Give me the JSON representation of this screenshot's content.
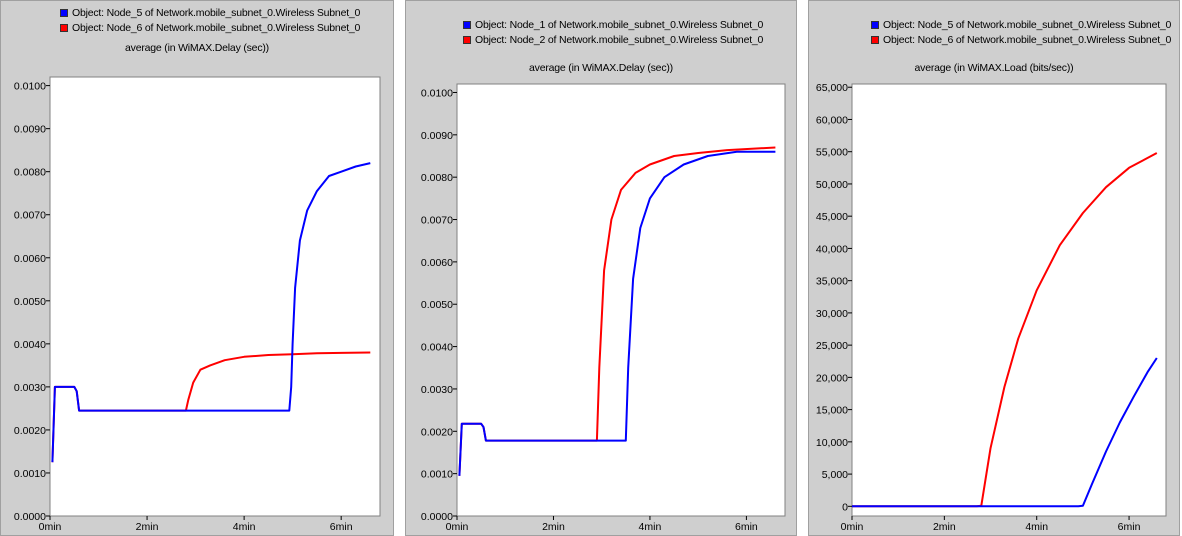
{
  "chart_data": [
    {
      "type": "line",
      "title": "average (in WiMAX.Delay (sec))",
      "xlabel": "",
      "ylabel": "",
      "xlim": [
        0,
        6.8
      ],
      "ylim": [
        0,
        0.0102
      ],
      "x_ticks": [
        {
          "value": 0,
          "label": "0min"
        },
        {
          "value": 2,
          "label": "2min"
        },
        {
          "value": 4,
          "label": "4min"
        },
        {
          "value": 6,
          "label": "6min"
        }
      ],
      "y_ticks": [
        {
          "value": 0,
          "label": "0.0000"
        },
        {
          "value": 0.001,
          "label": "0.0010"
        },
        {
          "value": 0.002,
          "label": "0.0020"
        },
        {
          "value": 0.003,
          "label": "0.0030"
        },
        {
          "value": 0.004,
          "label": "0.0040"
        },
        {
          "value": 0.005,
          "label": "0.0050"
        },
        {
          "value": 0.006,
          "label": "0.0060"
        },
        {
          "value": 0.007,
          "label": "0.0070"
        },
        {
          "value": 0.008,
          "label": "0.0080"
        },
        {
          "value": 0.009,
          "label": "0.0090"
        },
        {
          "value": 0.01,
          "label": "0.0100"
        }
      ],
      "grid": false,
      "legend": "top",
      "series": [
        {
          "name": "Object: Node_5 of Network.mobile_subnet_0.Wireless Subnet_0",
          "color": "#0000ff",
          "x": [
            0.05,
            0.1,
            0.2,
            0.5,
            0.55,
            0.6,
            1.0,
            2.0,
            2.8,
            3.5,
            4.0,
            4.5,
            4.93,
            4.97,
            5.0,
            5.05,
            5.15,
            5.3,
            5.5,
            5.75,
            6.0,
            6.3,
            6.6
          ],
          "y": [
            0.00125,
            0.003,
            0.003,
            0.003,
            0.0029,
            0.00245,
            0.00245,
            0.00245,
            0.00245,
            0.00245,
            0.00245,
            0.00245,
            0.00245,
            0.003,
            0.004,
            0.0053,
            0.0064,
            0.0071,
            0.00755,
            0.0079,
            0.008,
            0.00812,
            0.0082
          ]
        },
        {
          "name": "Object: Node_6 of Network.mobile_subnet_0.Wireless Subnet_0",
          "color": "#ff0000",
          "x": [
            0.05,
            0.1,
            0.2,
            0.5,
            0.55,
            0.6,
            1.0,
            2.0,
            2.8,
            2.85,
            2.95,
            3.1,
            3.3,
            3.6,
            4.0,
            4.5,
            5.0,
            5.5,
            6.0,
            6.6
          ],
          "y": [
            0.00125,
            0.003,
            0.003,
            0.003,
            0.0029,
            0.00245,
            0.00245,
            0.00245,
            0.00245,
            0.0027,
            0.0031,
            0.0034,
            0.0035,
            0.00362,
            0.0037,
            0.00374,
            0.00376,
            0.00378,
            0.00379,
            0.0038
          ]
        }
      ]
    },
    {
      "type": "line",
      "title": "average (in WiMAX.Delay (sec))",
      "xlabel": "",
      "ylabel": "",
      "xlim": [
        0,
        6.8
      ],
      "ylim": [
        0,
        0.0102
      ],
      "x_ticks": [
        {
          "value": 0,
          "label": "0min"
        },
        {
          "value": 2,
          "label": "2min"
        },
        {
          "value": 4,
          "label": "4min"
        },
        {
          "value": 6,
          "label": "6min"
        }
      ],
      "y_ticks": [
        {
          "value": 0,
          "label": "0.0000"
        },
        {
          "value": 0.001,
          "label": "0.0010"
        },
        {
          "value": 0.002,
          "label": "0.0020"
        },
        {
          "value": 0.003,
          "label": "0.0030"
        },
        {
          "value": 0.004,
          "label": "0.0040"
        },
        {
          "value": 0.005,
          "label": "0.0050"
        },
        {
          "value": 0.006,
          "label": "0.0060"
        },
        {
          "value": 0.007,
          "label": "0.0070"
        },
        {
          "value": 0.008,
          "label": "0.0080"
        },
        {
          "value": 0.009,
          "label": "0.0090"
        },
        {
          "value": 0.01,
          "label": "0.0100"
        }
      ],
      "grid": false,
      "legend": "top",
      "series": [
        {
          "name": "Object: Node_1 of Network.mobile_subnet_0.Wireless Subnet_0",
          "color": "#0000ff",
          "x": [
            0.05,
            0.1,
            0.2,
            0.5,
            0.55,
            0.6,
            1.0,
            2.0,
            2.9,
            3.5,
            3.55,
            3.65,
            3.8,
            4.0,
            4.3,
            4.7,
            5.2,
            5.8,
            6.6
          ],
          "y": [
            0.00095,
            0.00218,
            0.00218,
            0.00218,
            0.0021,
            0.00178,
            0.00178,
            0.00178,
            0.00178,
            0.00178,
            0.0035,
            0.0056,
            0.0068,
            0.0075,
            0.008,
            0.0083,
            0.0085,
            0.0086,
            0.0086
          ]
        },
        {
          "name": "Object: Node_2 of Network.mobile_subnet_0.Wireless Subnet_0",
          "color": "#ff0000",
          "x": [
            0.05,
            0.1,
            0.2,
            0.5,
            0.55,
            0.6,
            1.0,
            2.0,
            2.9,
            2.95,
            3.05,
            3.2,
            3.4,
            3.7,
            4.0,
            4.5,
            5.0,
            5.6,
            6.6
          ],
          "y": [
            0.00095,
            0.00218,
            0.00218,
            0.00218,
            0.0021,
            0.00178,
            0.00178,
            0.00178,
            0.00178,
            0.0035,
            0.0058,
            0.007,
            0.0077,
            0.0081,
            0.0083,
            0.0085,
            0.00857,
            0.00864,
            0.0087
          ]
        }
      ]
    },
    {
      "type": "line",
      "title": "average (in WiMAX.Load (bits/sec))",
      "xlabel": "",
      "ylabel": "",
      "xlim": [
        0,
        6.8
      ],
      "ylim": [
        -1500,
        65500
      ],
      "x_ticks": [
        {
          "value": 0,
          "label": "0min"
        },
        {
          "value": 2,
          "label": "2min"
        },
        {
          "value": 4,
          "label": "4min"
        },
        {
          "value": 6,
          "label": "6min"
        }
      ],
      "y_ticks": [
        {
          "value": 0,
          "label": "0"
        },
        {
          "value": 5000,
          "label": "5,000"
        },
        {
          "value": 10000,
          "label": "10,000"
        },
        {
          "value": 15000,
          "label": "15,000"
        },
        {
          "value": 20000,
          "label": "20,000"
        },
        {
          "value": 25000,
          "label": "25,000"
        },
        {
          "value": 30000,
          "label": "30,000"
        },
        {
          "value": 35000,
          "label": "35,000"
        },
        {
          "value": 40000,
          "label": "40,000"
        },
        {
          "value": 45000,
          "label": "45,000"
        },
        {
          "value": 50000,
          "label": "50,000"
        },
        {
          "value": 55000,
          "label": "55,000"
        },
        {
          "value": 60000,
          "label": "60,000"
        },
        {
          "value": 65000,
          "label": "65,000"
        }
      ],
      "grid": false,
      "legend": "top",
      "series": [
        {
          "name": "Object: Node_5 of Network.mobile_subnet_0.Wireless Subnet_0",
          "color": "#0000ff",
          "x": [
            0,
            1,
            2,
            3,
            4,
            4.9,
            5.0,
            5.2,
            5.5,
            5.8,
            6.1,
            6.4,
            6.6
          ],
          "y": [
            0,
            0,
            0,
            0,
            0,
            0,
            100,
            3500,
            8500,
            13000,
            17000,
            20800,
            23000
          ]
        },
        {
          "name": "Object: Node_6 of Network.mobile_subnet_0.Wireless Subnet_0",
          "color": "#ff0000",
          "x": [
            0,
            1,
            2,
            2.7,
            2.8,
            3.0,
            3.3,
            3.6,
            4.0,
            4.5,
            5.0,
            5.5,
            6.0,
            6.6
          ],
          "y": [
            0,
            0,
            0,
            0,
            100,
            9000,
            18500,
            26000,
            33500,
            40500,
            45500,
            49500,
            52500,
            54800
          ]
        }
      ]
    }
  ]
}
